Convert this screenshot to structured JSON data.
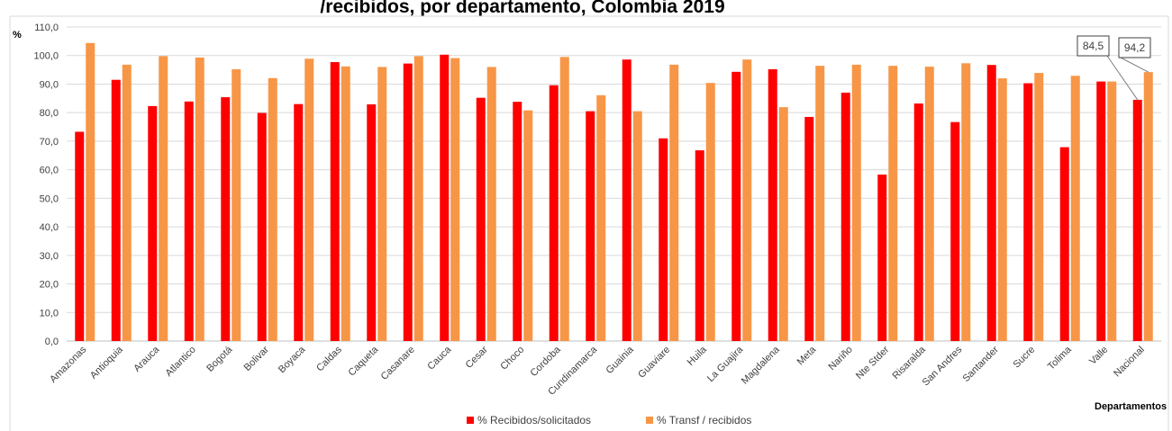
{
  "chart_data": {
    "type": "bar",
    "title": "/recibidos, por departamento, Colombia 2019",
    "ylabel": "%",
    "xlabel": "Departamentos",
    "ylim": [
      0,
      110
    ],
    "yticks": [
      "0,0",
      "10,0",
      "20,0",
      "30,0",
      "40,0",
      "50,0",
      "60,0",
      "70,0",
      "80,0",
      "90,0",
      "100,0",
      "110,0"
    ],
    "grid": true,
    "legend_position": "bottom",
    "categories": [
      "Amazonas",
      "Antioquia",
      "Arauca",
      "Atlantico",
      "Bogotá",
      "Bolivar",
      "Boyaca",
      "Caldas",
      "Caqueta",
      "Casanare",
      "Cauca",
      "Cesar",
      "Choco",
      "Cordoba",
      "Cundinamarca",
      "Guainia",
      "Guaviare",
      "Huila",
      "La Guajira",
      "Magdalena",
      "Meta",
      "Nariño",
      "Nte Stder",
      "Risaralda",
      "San Andres",
      "Santander",
      "Sucre",
      "Tolima",
      "Valle",
      "Nacional"
    ],
    "series": [
      {
        "name": "% Recibidos/solicitados",
        "color": "#ff0000",
        "values": [
          73.3,
          91.5,
          82.3,
          83.9,
          85.4,
          79.9,
          83.0,
          97.7,
          82.9,
          97.2,
          100.3,
          85.2,
          83.8,
          89.6,
          80.5,
          98.6,
          71.0,
          66.8,
          94.3,
          95.2,
          78.5,
          87.0,
          58.3,
          83.2,
          76.7,
          96.7,
          90.3,
          67.9,
          90.9,
          84.5
        ]
      },
      {
        "name": "% Transf / recibidos",
        "color": "#f79646",
        "values": [
          104.4,
          96.8,
          99.8,
          99.3,
          95.2,
          92.1,
          98.9,
          96.2,
          96.0,
          99.8,
          99.1,
          96.0,
          80.8,
          99.5,
          86.1,
          80.5,
          96.8,
          90.4,
          98.6,
          81.9,
          96.4,
          96.8,
          96.4,
          96.1,
          97.3,
          92.0,
          93.9,
          92.9,
          90.9,
          94.2
        ]
      }
    ],
    "annotations": [
      "84,5",
      "94,2"
    ]
  }
}
